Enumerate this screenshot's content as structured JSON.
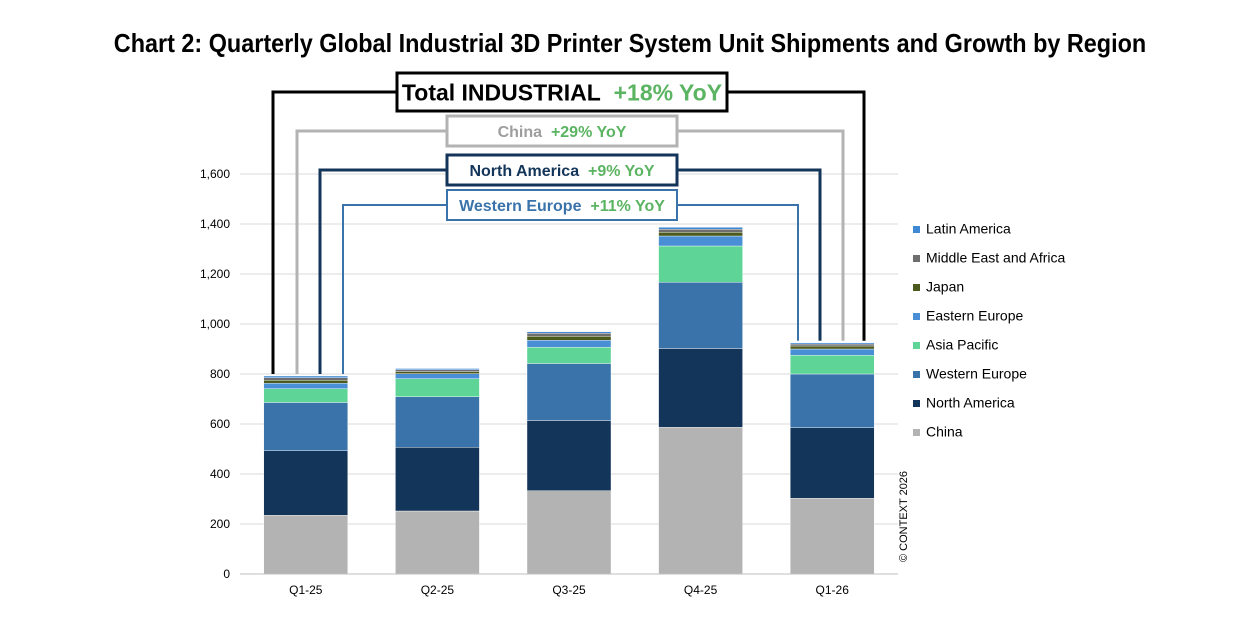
{
  "chart_data": {
    "type": "bar",
    "stacked": true,
    "title": "Chart 2: Quarterly Global Industrial 3D Printer System Unit Shipments and Growth by Region",
    "categories": [
      "Q1-25",
      "Q2-25",
      "Q3-25",
      "Q4-25",
      "Q1-26"
    ],
    "ylim": [
      0,
      1600
    ],
    "yticks": [
      0,
      200,
      400,
      600,
      800,
      1000,
      1200,
      1400,
      1600
    ],
    "ytick_labels": [
      "0",
      "200",
      "400",
      "600",
      "800",
      "1,000",
      "1,200",
      "1,400",
      "1,600"
    ],
    "grid": true,
    "legend_position": "right",
    "series": [
      {
        "name": "China",
        "color": "#b3b3b3",
        "values": [
          235,
          252,
          333,
          587,
          303
        ]
      },
      {
        "name": "North America",
        "color": "#14355a",
        "values": [
          258,
          255,
          281,
          315,
          282
        ]
      },
      {
        "name": "Western Europe",
        "color": "#3a73aa",
        "values": [
          193,
          202,
          228,
          265,
          215
        ]
      },
      {
        "name": "Asia Pacific",
        "color": "#5fd497",
        "values": [
          55,
          72,
          65,
          145,
          75
        ]
      },
      {
        "name": "Eastern Europe",
        "color": "#4a8fd6",
        "values": [
          22,
          20,
          28,
          40,
          25
        ]
      },
      {
        "name": "Japan",
        "color": "#4c5a1e",
        "values": [
          12,
          8,
          16,
          15,
          12
        ]
      },
      {
        "name": "Middle East and Africa",
        "color": "#6e6e6e",
        "values": [
          10,
          8,
          12,
          12,
          8
        ]
      },
      {
        "name": "Latin America",
        "color": "#3f88d4",
        "values": [
          7,
          5,
          6,
          8,
          5
        ]
      }
    ],
    "annotations": [
      {
        "label": "Total INDUSTRIAL",
        "growth": "+18% YoY",
        "line_color": "#000000",
        "text_color": "#000000",
        "growth_color": "#5bb462"
      },
      {
        "label": "China",
        "growth": "+29% YoY",
        "line_color": "#b3b3b3",
        "text_color": "#9e9e9e",
        "growth_color": "#5bb462"
      },
      {
        "label": "North America",
        "growth": "+9% YoY",
        "line_color": "#14355a",
        "text_color": "#14355a",
        "growth_color": "#5bb462"
      },
      {
        "label": "Western Europe",
        "growth": "+11% YoY",
        "line_color": "#3a73aa",
        "text_color": "#3a73aa",
        "growth_color": "#5bb462"
      }
    ],
    "copyright": "© CONTEXT 2026"
  }
}
